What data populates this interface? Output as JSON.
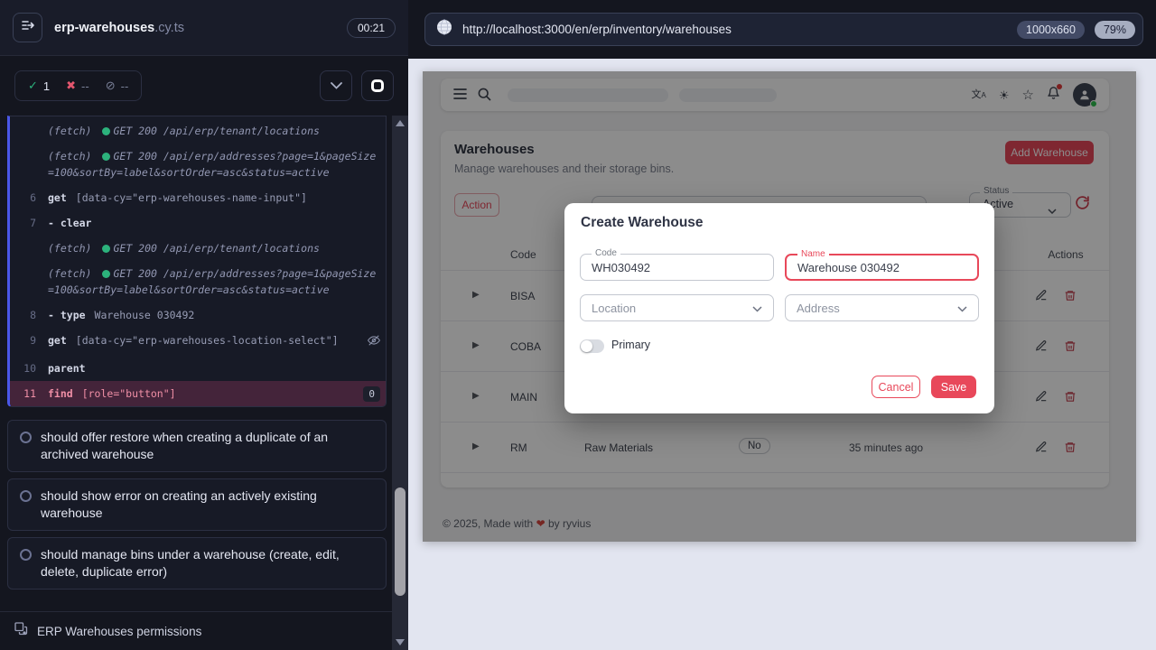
{
  "runner": {
    "spec_name": "erp-warehouses",
    "spec_ext": ".cy.ts",
    "timer": "00:21",
    "stats": {
      "passed": "1",
      "failed": "--",
      "pending": "--"
    },
    "commands": [
      {
        "kind": "fetch",
        "label": "(fetch)",
        "text": "GET 200 /api/erp/tenant/locations"
      },
      {
        "kind": "fetch",
        "label": "(fetch)",
        "text": "GET 200 /api/erp/addresses?page=1&pageSize=100&sortBy=label&sortOrder=asc&status=active"
      },
      {
        "kind": "cmd",
        "num": "6",
        "name": "get",
        "message": "[data-cy=\"erp-warehouses-name-input\"]"
      },
      {
        "kind": "cmd",
        "num": "7",
        "name": "- clear",
        "message": ""
      },
      {
        "kind": "fetch",
        "label": "(fetch)",
        "text": "GET 200 /api/erp/tenant/locations"
      },
      {
        "kind": "fetch",
        "label": "(fetch)",
        "text": "GET 200 /api/erp/addresses?page=1&pageSize=100&sortBy=label&sortOrder=asc&status=active"
      },
      {
        "kind": "cmd",
        "num": "8",
        "name": "- type",
        "message": "Warehouse 030492"
      },
      {
        "kind": "cmd",
        "num": "9",
        "name": "get",
        "message": "[data-cy=\"erp-warehouses-location-select\"]",
        "icon": "eye-slash"
      },
      {
        "kind": "cmd",
        "num": "10",
        "name": "parent",
        "message": ""
      },
      {
        "kind": "cmd",
        "num": "11",
        "name": "find",
        "message": "[role=\"button\"]",
        "badge": "0",
        "highlight": true
      }
    ],
    "pending_tests": [
      "should offer restore when creating a duplicate of an archived warehouse",
      "should show error on creating an actively existing warehouse",
      "should manage bins under a warehouse (create, edit, delete, duplicate error)"
    ],
    "suite_footer": "ERP Warehouses permissions"
  },
  "browser": {
    "url": "http://localhost:3000/en/erp/inventory/warehouses",
    "viewport": "1000x660",
    "zoom": "79%"
  },
  "app": {
    "page": {
      "title": "Warehouses",
      "subtitle": "Manage warehouses and their storage bins.",
      "add_button": "Add Warehouse"
    },
    "filters": {
      "action_button": "Action",
      "status_label": "Status",
      "status_value": "Active"
    },
    "table": {
      "header_code": "Code",
      "header_actions": "Actions",
      "rows": [
        {
          "code": "BISA",
          "name": "",
          "primary": "",
          "updated": ""
        },
        {
          "code": "COBA",
          "name": "",
          "primary": "",
          "updated": ""
        },
        {
          "code": "MAIN",
          "name": "",
          "primary": "",
          "updated": ""
        },
        {
          "code": "RM",
          "name": "Raw Materials",
          "primary": "No",
          "updated": "35 minutes ago"
        }
      ]
    },
    "footer": {
      "prefix": "© 2025, Made with",
      "heart": "❤",
      "suffix": "by ryvius"
    }
  },
  "modal": {
    "title": "Create Warehouse",
    "code": {
      "label": "Code",
      "value": "WH030492"
    },
    "name": {
      "label": "Name",
      "value": "Warehouse 030492"
    },
    "location_placeholder": "Location",
    "address_placeholder": "Address",
    "primary_label": "Primary",
    "cancel_label": "Cancel",
    "save_label": "Save"
  },
  "colors": {
    "accent_red": "#e8485a",
    "pass_green": "#2cb27c",
    "fail_red": "#e4566e",
    "active_blue": "#4a57e8"
  }
}
